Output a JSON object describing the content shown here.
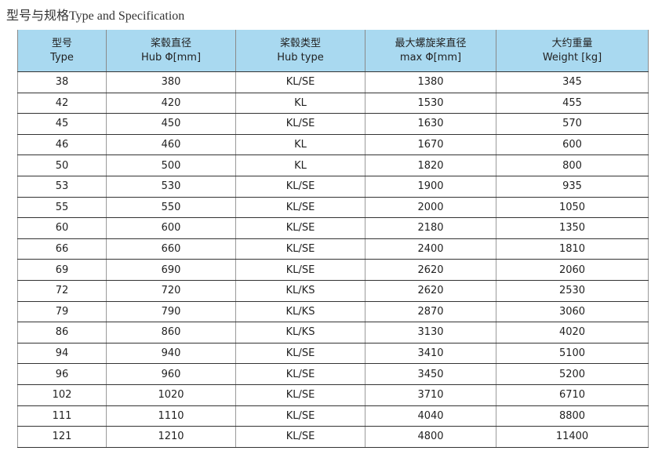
{
  "title": "型号与规格Type and Specification",
  "table": {
    "headers": [
      [
        "型号",
        "Type"
      ],
      [
        "桨毂直径",
        "Hub Φ[mm]"
      ],
      [
        "桨毂类型",
        "Hub type"
      ],
      [
        "最大螺旋桨直径",
        "max Φ[mm]"
      ],
      [
        "大约重量",
        "Weight [kg]"
      ]
    ],
    "rows": [
      [
        38,
        380,
        "KL/SE",
        1380,
        345
      ],
      [
        42,
        420,
        "KL",
        1530,
        455
      ],
      [
        45,
        450,
        "KL/SE",
        1630,
        570
      ],
      [
        46,
        460,
        "KL",
        1670,
        600
      ],
      [
        50,
        500,
        "KL",
        1820,
        800
      ],
      [
        53,
        530,
        "KL/SE",
        1900,
        935
      ],
      [
        55,
        550,
        "KL/SE",
        2000,
        1050
      ],
      [
        60,
        600,
        "KL/SE",
        2180,
        1350
      ],
      [
        66,
        660,
        "KL/SE",
        2400,
        1810
      ],
      [
        69,
        690,
        "KL/SE",
        2620,
        2060
      ],
      [
        72,
        720,
        "KL/KS",
        2620,
        2530
      ],
      [
        79,
        790,
        "KL/KS",
        2870,
        3060
      ],
      [
        86,
        860,
        "KL/KS",
        3130,
        4020
      ],
      [
        94,
        940,
        "KL/SE",
        3410,
        5100
      ],
      [
        96,
        960,
        "KL/SE",
        3450,
        5200
      ],
      [
        102,
        1020,
        "KL/SE",
        3710,
        6710
      ],
      [
        111,
        1110,
        "KL/SE",
        4040,
        8800
      ],
      [
        121,
        1210,
        "KL/SE",
        4800,
        11400
      ]
    ]
  }
}
